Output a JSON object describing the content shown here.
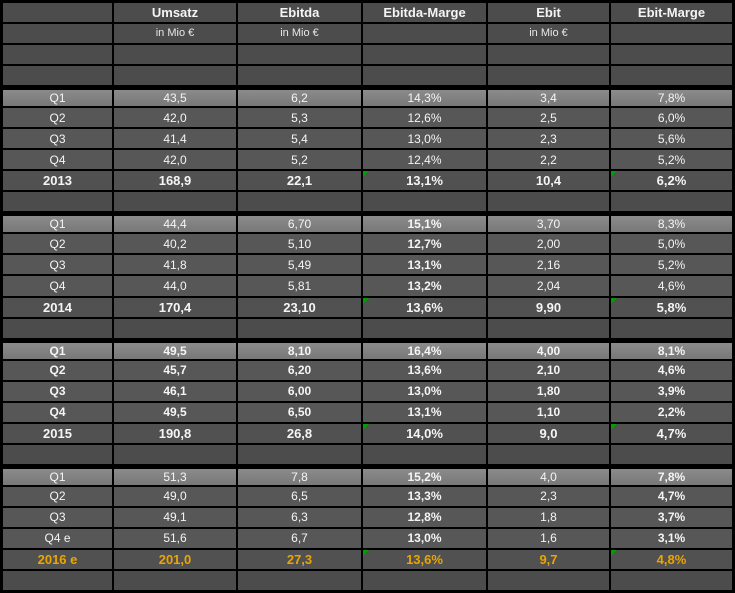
{
  "colors": {
    "grid_background": "#000000",
    "header_row": "#4c4c4c",
    "quarter_row": "#575757",
    "q1_row": "#828282",
    "year_row": "#515151",
    "highlight_text": "#eaa500",
    "error_indicator": "#00a000",
    "text": "#f5f5f5"
  },
  "table": {
    "columns": [
      {
        "label": "",
        "sub": ""
      },
      {
        "label": "Umsatz",
        "sub": "in Mio €"
      },
      {
        "label": "Ebitda",
        "sub": "in Mio €"
      },
      {
        "label": "Ebitda-Marge",
        "sub": ""
      },
      {
        "label": "Ebit",
        "sub": "in Mio €"
      },
      {
        "label": "Ebit-Marge",
        "sub": ""
      }
    ],
    "blocks": [
      {
        "year": "2013",
        "style": {
          "bold_value_cols": [],
          "bold_labels": false,
          "gold": false
        },
        "quarters": [
          {
            "label": "Q1",
            "values": [
              "43,5",
              "6,2",
              "14,3%",
              "3,4",
              "7,8%"
            ]
          },
          {
            "label": "Q2",
            "values": [
              "42,0",
              "5,3",
              "12,6%",
              "2,5",
              "6,0%"
            ]
          },
          {
            "label": "Q3",
            "values": [
              "41,4",
              "5,4",
              "13,0%",
              "2,3",
              "5,6%"
            ]
          },
          {
            "label": "Q4",
            "values": [
              "42,0",
              "5,2",
              "12,4%",
              "2,2",
              "5,2%"
            ]
          }
        ],
        "total": {
          "label": "2013",
          "values": [
            "168,9",
            "22,1",
            "13,1%",
            "10,4",
            "6,2%"
          ]
        }
      },
      {
        "year": "2014",
        "style": {
          "bold_value_cols": [
            2
          ],
          "bold_labels": false,
          "gold": false
        },
        "quarters": [
          {
            "label": "Q1",
            "values": [
              "44,4",
              "6,70",
              "15,1%",
              "3,70",
              "8,3%"
            ]
          },
          {
            "label": "Q2",
            "values": [
              "40,2",
              "5,10",
              "12,7%",
              "2,00",
              "5,0%"
            ]
          },
          {
            "label": "Q3",
            "values": [
              "41,8",
              "5,49",
              "13,1%",
              "2,16",
              "5,2%"
            ]
          },
          {
            "label": "Q4",
            "values": [
              "44,0",
              "5,81",
              "13,2%",
              "2,04",
              "4,6%"
            ]
          }
        ],
        "total": {
          "label": "2014",
          "values": [
            "170,4",
            "23,10",
            "13,6%",
            "9,90",
            "5,8%"
          ]
        }
      },
      {
        "year": "2015",
        "style": {
          "bold_value_cols": [
            0,
            1,
            2,
            3,
            4
          ],
          "bold_labels": true,
          "gold": false
        },
        "quarters": [
          {
            "label": "Q1",
            "values": [
              "49,5",
              "8,10",
              "16,4%",
              "4,00",
              "8,1%"
            ]
          },
          {
            "label": "Q2",
            "values": [
              "45,7",
              "6,20",
              "13,6%",
              "2,10",
              "4,6%"
            ]
          },
          {
            "label": "Q3",
            "values": [
              "46,1",
              "6,00",
              "13,0%",
              "1,80",
              "3,9%"
            ]
          },
          {
            "label": "Q4",
            "values": [
              "49,5",
              "6,50",
              "13,1%",
              "1,10",
              "2,2%"
            ]
          }
        ],
        "total": {
          "label": "2015",
          "values": [
            "190,8",
            "26,8",
            "14,0%",
            "9,0",
            "4,7%"
          ]
        }
      },
      {
        "year": "2016",
        "style": {
          "bold_value_cols": [
            2,
            4
          ],
          "bold_labels": false,
          "gold": true
        },
        "quarters": [
          {
            "label": "Q1",
            "values": [
              "51,3",
              "7,8",
              "15,2%",
              "4,0",
              "7,8%"
            ]
          },
          {
            "label": "Q2",
            "values": [
              "49,0",
              "6,5",
              "13,3%",
              "2,3",
              "4,7%"
            ]
          },
          {
            "label": "Q3",
            "values": [
              "49,1",
              "6,3",
              "12,8%",
              "1,8",
              "3,7%"
            ]
          },
          {
            "label": "Q4 e",
            "values": [
              "51,6",
              "6,7",
              "13,0%",
              "1,6",
              "3,1%"
            ]
          }
        ],
        "total": {
          "label": "2016 e",
          "values": [
            "201,0",
            "27,3",
            "13,6%",
            "9,7",
            "4,8%"
          ]
        }
      }
    ]
  }
}
